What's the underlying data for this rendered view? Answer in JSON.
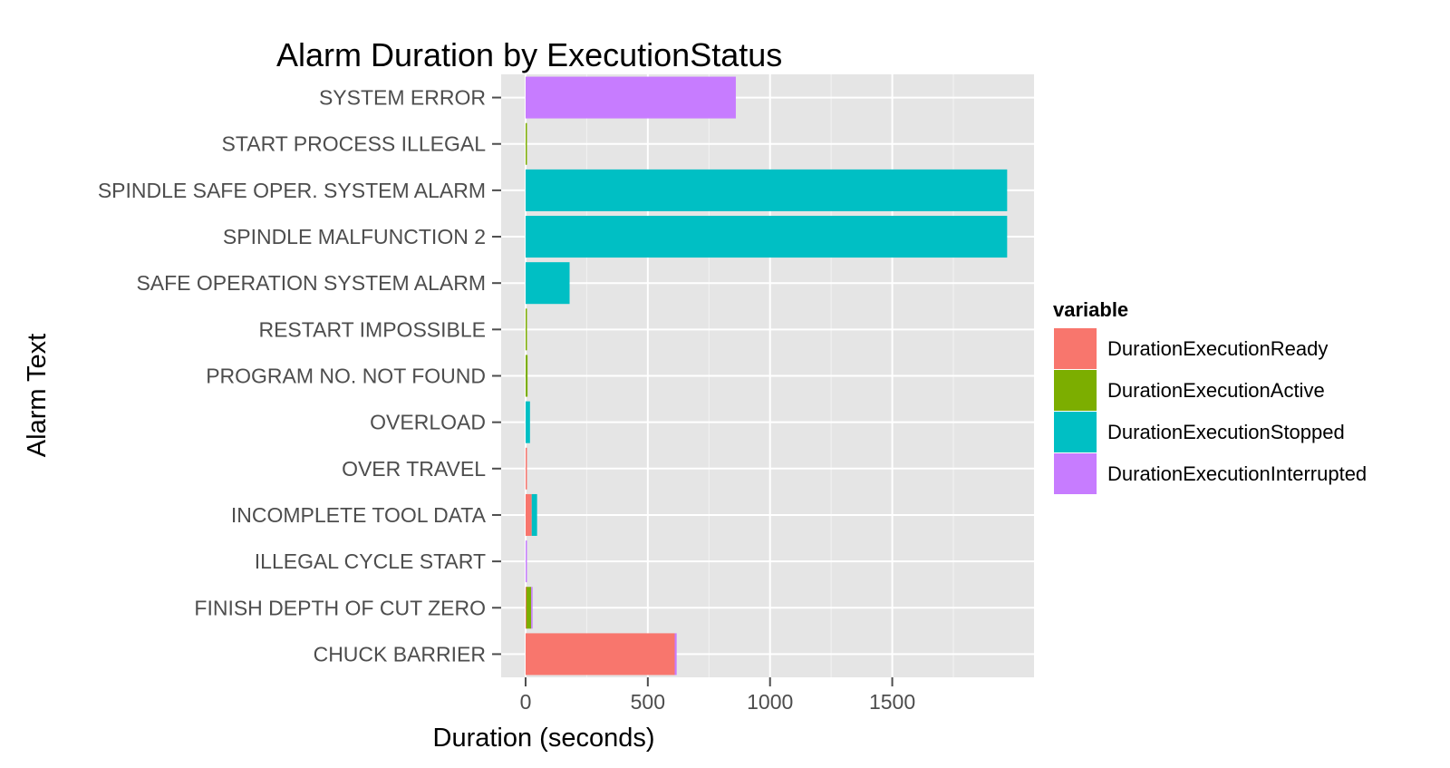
{
  "chart_data": {
    "type": "bar",
    "orientation": "horizontal",
    "stacked": true,
    "title": "Alarm Duration by ExecutionStatus",
    "xlabel": "Duration (seconds)",
    "ylabel": "Alarm Text",
    "xlim": [
      -100,
      2080
    ],
    "xticks": [
      0,
      500,
      1000,
      1500
    ],
    "xtick_labels": [
      "0",
      "500",
      "1000",
      "1500"
    ],
    "x_minor_ticks": [
      250,
      750,
      1250,
      1750
    ],
    "grid": true,
    "legend": {
      "title": "variable",
      "position": "right"
    },
    "categories": [
      "SYSTEM ERROR",
      "START PROCESS ILLEGAL",
      "SPINDLE SAFE OPER. SYSTEM ALARM",
      "SPINDLE MALFUNCTION 2",
      "SAFE OPERATION SYSTEM ALARM",
      "RESTART IMPOSSIBLE",
      "PROGRAM NO. NOT FOUND",
      "OVERLOAD",
      "OVER TRAVEL",
      "INCOMPLETE TOOL DATA",
      "ILLEGAL CYCLE START",
      "FINISH DEPTH OF CUT ZERO",
      "CHUCK BARRIER"
    ],
    "series": [
      {
        "name": "DurationExecutionReady",
        "color": "#F8766D",
        "values": [
          0,
          0,
          0,
          0,
          0,
          0,
          0,
          0,
          3,
          25,
          0,
          3,
          610
        ]
      },
      {
        "name": "DurationExecutionActive",
        "color": "#7CAE00",
        "values": [
          0,
          5,
          0,
          0,
          0,
          3,
          8,
          0,
          0,
          0,
          0,
          20,
          0
        ]
      },
      {
        "name": "DurationExecutionStopped",
        "color": "#00BFC4",
        "values": [
          0,
          0,
          1970,
          1970,
          180,
          0,
          0,
          18,
          0,
          22,
          0,
          0,
          0
        ]
      },
      {
        "name": "DurationExecutionInterrupted",
        "color": "#C77CFF",
        "values": [
          860,
          0,
          0,
          0,
          0,
          0,
          0,
          0,
          0,
          0,
          5,
          3,
          8
        ]
      }
    ]
  }
}
